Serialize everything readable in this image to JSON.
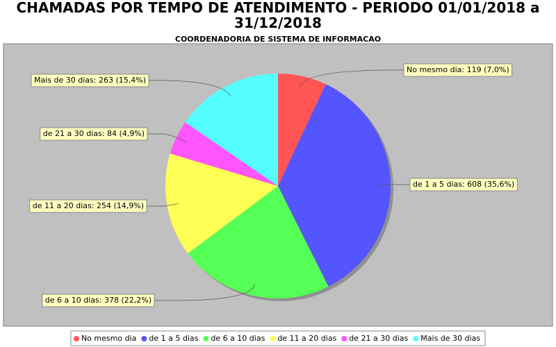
{
  "chart_data": {
    "type": "pie",
    "title": "CHAMADAS POR TEMPO DE ATENDIMENTO - PERIODO 01/01/2018 a 31/12/2018",
    "subtitle": "COORDENADORIA DE SISTEMA DE INFORMACAO",
    "categories": [
      "No mesmo dia",
      "de 1 a 5 dias",
      "de 6 a 10 dias",
      "de 11 a 20 dias",
      "de 21 a 30 dias",
      "Mais de 30 dias"
    ],
    "values": [
      119,
      608,
      378,
      254,
      84,
      263
    ],
    "value_labels": [
      "No mesmo dia: 119 (7,0%)",
      "de 1 a 5 dias: 608 (35,6%)",
      "de 6 a 10 dias: 378 (22,2%)",
      "de 11 a 20 dias: 254 (14,9%)",
      "de 21 a 30 dias: 84 (4,9%)",
      "Mais de 30 dias: 263 (15,4%)"
    ],
    "colors": [
      "#ff5555",
      "#5555ff",
      "#55ff55",
      "#ffff55",
      "#ff55ff",
      "#55ffff"
    ],
    "legend": "bottom"
  }
}
